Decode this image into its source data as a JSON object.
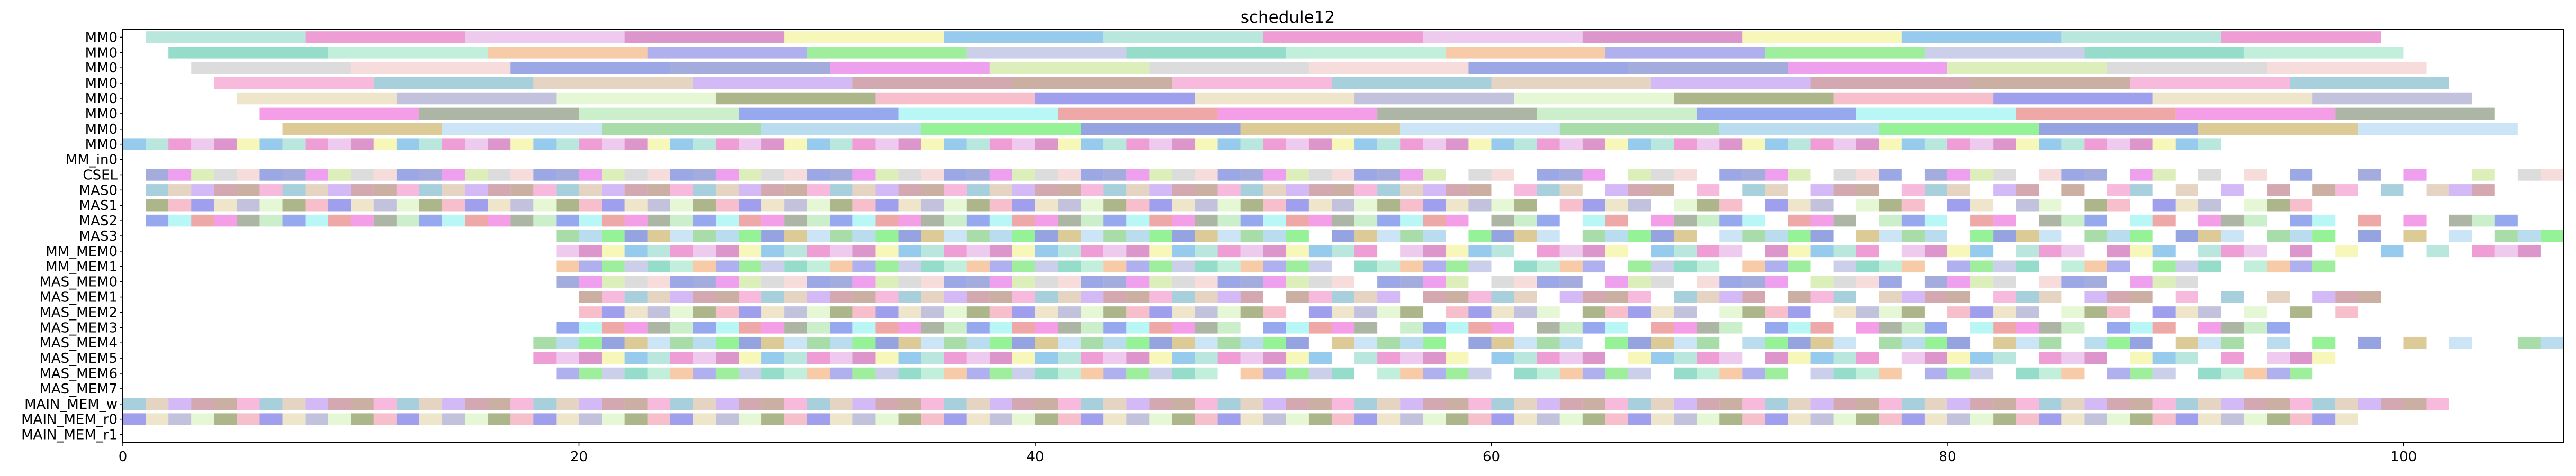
{
  "chart_data": {
    "type": "gantt",
    "title": "schedule12",
    "xlabel": "",
    "ylabel": "",
    "xlim": [
      0,
      107
    ],
    "xticks": [
      0,
      20,
      40,
      60,
      80,
      100
    ],
    "grid": false,
    "legend": "none",
    "rows": [
      "MM0",
      "MM0",
      "MM0",
      "MM0",
      "MM0",
      "MM0",
      "MM0",
      "MM0",
      "MM_in0",
      "CSEL",
      "MAS0",
      "MAS1",
      "MAS2",
      "MAS3",
      "MM_MEM0",
      "MM_MEM1",
      "MAS_MEM0",
      "MAS_MEM1",
      "MAS_MEM2",
      "MAS_MEM3",
      "MAS_MEM4",
      "MAS_MEM5",
      "MAS_MEM6",
      "MAS_MEM7",
      "MAIN_MEM_w",
      "MAIN_MEM_r0",
      "MAIN_MEM_r1"
    ],
    "long_rows": {
      "0": [
        1,
        8,
        15,
        22,
        29,
        36,
        43,
        50,
        57,
        64,
        71,
        78,
        85,
        92
      ],
      "1": [
        2,
        9,
        16,
        23,
        30,
        37,
        44,
        51,
        58,
        65,
        72,
        79,
        86,
        93
      ],
      "2": [
        3,
        10,
        17,
        24,
        31,
        38,
        45,
        52,
        59,
        66,
        73,
        80,
        87,
        94
      ],
      "3": [
        4,
        11,
        18,
        25,
        32,
        39,
        46,
        53,
        60,
        67,
        74,
        81,
        88,
        95
      ],
      "4": [
        5,
        12,
        19,
        26,
        33,
        40,
        47,
        54,
        61,
        68,
        75,
        82,
        89,
        96
      ],
      "5": [
        6,
        13,
        20,
        27,
        34,
        41,
        48,
        55,
        62,
        69,
        76,
        83,
        90,
        97
      ],
      "6": [
        7,
        14,
        21,
        28,
        35,
        42,
        49,
        56,
        63,
        70,
        77,
        84,
        91,
        98
      ]
    },
    "long_duration": 7,
    "short_duration": 1,
    "short_rows": {
      "7": {
        "start": 0,
        "end": 91,
        "step": 1,
        "skip": []
      },
      "8": {
        "start": 0,
        "end": 0,
        "step": 1,
        "skip": []
      },
      "9": {
        "start": 1,
        "end": 107,
        "step": 1,
        "skip": [
          58,
          61,
          65,
          69,
          74,
          78,
          83,
          87,
          90,
          92,
          94,
          96,
          97,
          99,
          101,
          102,
          104
        ]
      },
      "10": {
        "start": 1,
        "end": 103,
        "step": 1,
        "skip": [
          60,
          64,
          68,
          70,
          73,
          77,
          81,
          84,
          86,
          89,
          91,
          93,
          95,
          98,
          100
        ]
      },
      "11": {
        "start": 1,
        "end": 95,
        "step": 1,
        "skip": [
          62,
          67,
          71,
          75,
          79,
          82,
          85,
          88,
          92
        ]
      },
      "12": {
        "start": 1,
        "end": 104,
        "step": 1,
        "skip": [
          59,
          63,
          66,
          72,
          76,
          80,
          83,
          87,
          90,
          94,
          97,
          99,
          101
        ]
      },
      "13": {
        "start": 19,
        "end": 106,
        "step": 1,
        "skip": [
          52,
          58,
          63,
          69,
          75,
          80,
          85,
          89,
          93,
          97,
          99,
          101,
          103
        ]
      },
      "14": {
        "start": 19,
        "end": 105,
        "step": 1,
        "skip": [
          55,
          61,
          66,
          71,
          77,
          82,
          86,
          90,
          94,
          96,
          98,
          100,
          102
        ]
      },
      "15": {
        "start": 19,
        "end": 96,
        "step": 1,
        "skip": [
          53,
          60,
          65,
          70,
          74,
          79,
          84,
          88,
          92
        ]
      },
      "16": {
        "start": 19,
        "end": 90,
        "step": 1,
        "skip": [
          54,
          59,
          64,
          68,
          73,
          78,
          83,
          87
        ]
      },
      "17": {
        "start": 20,
        "end": 98,
        "step": 1,
        "skip": [
          50,
          56,
          62,
          67,
          72,
          76,
          81,
          85,
          89,
          91,
          93,
          95
        ]
      },
      "18": {
        "start": 20,
        "end": 97,
        "step": 1,
        "skip": [
          51,
          57,
          63,
          69,
          74,
          79,
          84,
          88,
          92,
          94,
          96
        ]
      },
      "19": {
        "start": 19,
        "end": 94,
        "step": 1,
        "skip": [
          49,
          55,
          61,
          66,
          71,
          75,
          80,
          86,
          90
        ]
      },
      "20": {
        "start": 18,
        "end": 106,
        "step": 1,
        "skip": [
          52,
          58,
          64,
          70,
          76,
          81,
          85,
          89,
          93,
          95,
          97,
          99,
          101,
          103,
          104
        ]
      },
      "21": {
        "start": 18,
        "end": 96,
        "step": 1,
        "skip": [
          53,
          59,
          65,
          71,
          77,
          83,
          87,
          91,
          93
        ]
      },
      "22": {
        "start": 19,
        "end": 95,
        "step": 1,
        "skip": [
          48,
          54,
          60,
          67,
          73,
          78,
          82,
          86,
          90
        ]
      },
      "23": {
        "start": 0,
        "end": 0,
        "step": 1,
        "skip": []
      },
      "24": {
        "start": 0,
        "end": 101,
        "step": 1,
        "skip": []
      },
      "25": {
        "start": 0,
        "end": 97,
        "step": 1,
        "skip": []
      }
    },
    "palette": [
      "#7fd3c3",
      "#ea4fd2",
      "#a26d57",
      "#4fe04f",
      "#3fe83f",
      "#6a7a2a",
      "#4a5ed0",
      "#e04fb0",
      "#6a7a5a",
      "#f080c0",
      "#a0a8d8",
      "#4058c8",
      "#f08aa0",
      "#5868c0",
      "#e0a0e0",
      "#a0e0a0",
      "#60a8c0",
      "#40c0a0",
      "#c0a040",
      "#5050e0",
      "#e050e0",
      "#c040a0",
      "#4060e0",
      "#d0b090",
      "#90e0c0",
      "#a0d0f0",
      "#e0d0a0",
      "#c0e080",
      "#f0f080",
      "#80f0f0",
      "#b080f0",
      "#f0a060",
      "#60c060",
      "#9090c0",
      "#c0c0c0",
      "#40a0e0",
      "#e06060",
      "#b06070",
      "#7070e0",
      "#80c0e0",
      "#d0f0b0",
      "#f0c0c0"
    ]
  }
}
